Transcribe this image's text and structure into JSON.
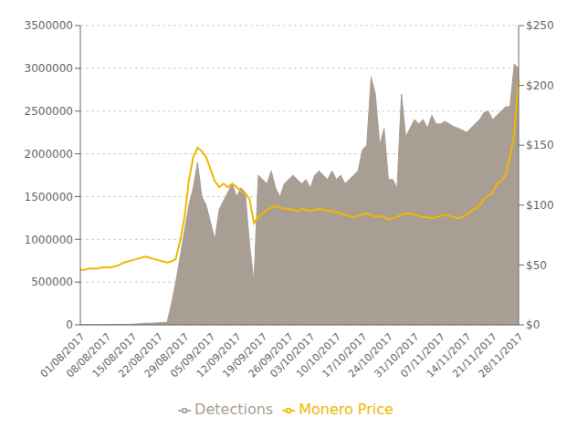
{
  "chart_data": {
    "type": "line",
    "categories": [
      "01/08/2017",
      null,
      null,
      null,
      null,
      null,
      "08/08/2017",
      null,
      null,
      null,
      null,
      null,
      "15/08/2017",
      null,
      null,
      null,
      null,
      null,
      "22/08/2017",
      null,
      null,
      null,
      null,
      null,
      "29/08/2017",
      null,
      null,
      null,
      null,
      null,
      "05/09/2017",
      null,
      null,
      null,
      null,
      null,
      "12/09/2017",
      null,
      null,
      null,
      null,
      null,
      "19/09/2017",
      null,
      null,
      null,
      null,
      null,
      "26/09/2017",
      null,
      null,
      null,
      null,
      "03/10/2017",
      null,
      null,
      null,
      null,
      null,
      "10/10/2017",
      null,
      null,
      null,
      null,
      null,
      "17/10/2017",
      null,
      null,
      null,
      null,
      null,
      "24/10/2017",
      null,
      null,
      null,
      null,
      null,
      "31/10/2017",
      null,
      null,
      null,
      null,
      null,
      "07/11/2017",
      null,
      null,
      null,
      null,
      null,
      "14/11/2017",
      null,
      null,
      null,
      null,
      null,
      "21/11/2017",
      null,
      null,
      null,
      null,
      null,
      "28/11/2017"
    ],
    "series": [
      {
        "name": "Detections",
        "type": "area",
        "color": "#a89e93",
        "values": [
          2000,
          3000,
          2000,
          3000,
          4000,
          3000,
          4000,
          5000,
          6000,
          7000,
          6000,
          7000,
          8000,
          10000,
          15000,
          20000,
          18000,
          22000,
          25000,
          28000,
          30000,
          250000,
          500000,
          800000,
          1100000,
          1400000,
          1600000,
          1900000,
          1500000,
          1400000,
          1200000,
          1000000,
          1350000,
          1450000,
          1550000,
          1650000,
          1500000,
          1600000,
          1550000,
          950000,
          500000,
          1750000,
          1700000,
          1650000,
          1800000,
          1600000,
          1500000,
          1650000,
          1700000,
          1750000,
          1700000,
          1650000,
          1700000,
          1600000,
          1750000,
          1800000,
          1750000,
          1700000,
          1800000,
          1700000,
          1750000,
          1650000,
          1700000,
          1750000,
          1800000,
          2050000,
          2100000,
          2900000,
          2700000,
          2100000,
          2300000,
          1700000,
          1700000,
          1600000,
          2700000,
          2200000,
          2300000,
          2400000,
          2350000,
          2400000,
          2300000,
          2450000,
          2350000,
          2350000,
          2380000,
          2350000,
          2320000,
          2300000,
          2280000,
          2250000,
          2300000,
          2350000,
          2400000,
          2480000,
          2500000,
          2400000,
          2450000,
          2500000,
          2550000,
          2550000,
          3050000,
          3000000
        ]
      },
      {
        "name": "Monero Price",
        "type": "line",
        "axis": "y2",
        "color": "#f0b800",
        "values": [
          46,
          46,
          47,
          47,
          47,
          48,
          48,
          48,
          49,
          50,
          52,
          53,
          54,
          55,
          56,
          57,
          56,
          55,
          54,
          53,
          52,
          53,
          55,
          70,
          90,
          120,
          140,
          148,
          145,
          140,
          130,
          120,
          115,
          118,
          115,
          118,
          115,
          112,
          110,
          105,
          85,
          90,
          93,
          96,
          98,
          99,
          98,
          97,
          97,
          96,
          95,
          97,
          96,
          95,
          96,
          97,
          96,
          95,
          95,
          94,
          93,
          92,
          91,
          90,
          91,
          92,
          93,
          92,
          90,
          91,
          90,
          88,
          89,
          90,
          92,
          93,
          93,
          92,
          91,
          90,
          90,
          89,
          90,
          91,
          92,
          91,
          90,
          89,
          90,
          92,
          95,
          97,
          100,
          105,
          108,
          110,
          118,
          120,
          125,
          140,
          160,
          205
        ]
      }
    ],
    "ylim": [
      0,
      3500000
    ],
    "yticks": [
      0,
      500000,
      1000000,
      1500000,
      2000000,
      2500000,
      3000000,
      3500000
    ],
    "y2lim": [
      0,
      250
    ],
    "y2ticks": [
      {
        "value": 0,
        "label": "$0"
      },
      {
        "value": 50,
        "label": "$50"
      },
      {
        "value": 100,
        "label": "$100"
      },
      {
        "value": 150,
        "label": "$150"
      },
      {
        "value": 200,
        "label": "$200"
      },
      {
        "value": 250,
        "label": "$250"
      }
    ],
    "grid": true,
    "legend": "bottom"
  }
}
